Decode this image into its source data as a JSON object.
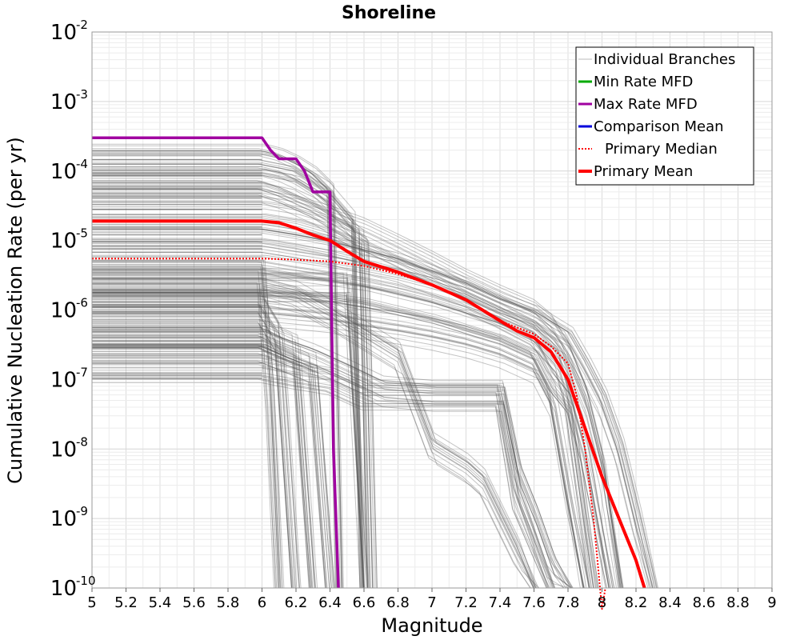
{
  "chart_data": {
    "type": "line",
    "title": "Shoreline",
    "xlabel": "Magnitude",
    "ylabel": "Cumulative Nucleation Rate (per yr)",
    "xlim": [
      5,
      9
    ],
    "ylim": [
      1e-10,
      0.01
    ],
    "yscale": "log",
    "grid": true,
    "legend_position": "top-right",
    "x_ticks": [
      "5",
      "5.2",
      "5.4",
      "5.6",
      "5.8",
      "6",
      "6.2",
      "6.4",
      "6.6",
      "6.8",
      "7",
      "7.2",
      "7.4",
      "7.6",
      "7.8",
      "8",
      "8.2",
      "8.4",
      "8.6",
      "8.8",
      "9"
    ],
    "y_ticks": [
      {
        "base": "10",
        "exp": "-10"
      },
      {
        "base": "10",
        "exp": "-9"
      },
      {
        "base": "10",
        "exp": "-8"
      },
      {
        "base": "10",
        "exp": "-7"
      },
      {
        "base": "10",
        "exp": "-6"
      },
      {
        "base": "10",
        "exp": "-5"
      },
      {
        "base": "10",
        "exp": "-4"
      },
      {
        "base": "10",
        "exp": "-3"
      },
      {
        "base": "10",
        "exp": "-2"
      }
    ],
    "series": [
      {
        "name": "Individual Branches",
        "color": "#555555",
        "style": "thin",
        "description": "hundreds of logic-tree branch MFDs; a representative subset is drawn",
        "bundles": [
          {
            "x": [
              5,
              6.0,
              6.1,
              6.2,
              6.3,
              6.4,
              6.45
            ],
            "y": [
              0.00015,
              0.00015,
              0.00013,
              0.0001,
              7e-05,
              4e-05,
              1e-10
            ]
          },
          {
            "x": [
              5,
              6.0,
              6.2,
              6.4,
              6.55,
              6.6
            ],
            "y": [
              0.0001,
              0.0001,
              8e-05,
              4e-05,
              1.5e-05,
              1e-10
            ]
          },
          {
            "x": [
              5,
              6.0,
              6.1,
              6.3,
              6.5,
              6.6,
              6.65
            ],
            "y": [
              6e-05,
              6e-05,
              5e-05,
              3e-05,
              1.5e-05,
              1e-05,
              1e-10
            ]
          },
          {
            "x": [
              5,
              6.0,
              6.2,
              6.4,
              6.6,
              6.8,
              7.0,
              7.2,
              7.4,
              7.6,
              7.7,
              7.8,
              7.9,
              8.0,
              8.1
            ],
            "y": [
              3e-05,
              3e-05,
              2.5e-05,
              1.8e-05,
              1.2e-05,
              7e-06,
              4e-06,
              2.2e-06,
              1.3e-06,
              8e-07,
              5e-07,
              2e-07,
              5e-08,
              5e-09,
              1e-10
            ]
          },
          {
            "x": [
              5,
              6.0,
              6.2,
              6.4,
              6.6,
              6.8,
              7.0,
              7.2,
              7.4,
              7.6,
              7.8,
              7.9,
              8.0,
              8.1,
              8.2,
              8.3
            ],
            "y": [
              1.2e-05,
              1.2e-05,
              1e-05,
              8e-06,
              6e-06,
              4.5e-06,
              3e-06,
              2e-06,
              1.2e-06,
              8e-07,
              4e-07,
              1.5e-07,
              5e-08,
              1e-08,
              1e-09,
              1e-10
            ]
          },
          {
            "x": [
              5,
              6.0,
              6.2,
              6.4,
              6.6,
              6.8,
              7.0,
              7.2,
              7.4,
              7.6,
              7.75,
              7.9,
              8.05
            ],
            "y": [
              6e-06,
              6e-06,
              5e-06,
              4.2e-06,
              3.5e-06,
              2.8e-06,
              2.1e-06,
              1.5e-06,
              9e-07,
              5e-07,
              2e-07,
              1e-08,
              1e-10
            ]
          },
          {
            "x": [
              5,
              6.0,
              6.2,
              6.4,
              6.6,
              6.8,
              7.0,
              7.2,
              7.4,
              7.6,
              7.7,
              7.8,
              7.95
            ],
            "y": [
              2.5e-06,
              2.5e-06,
              2.3e-06,
              2e-06,
              1.7e-06,
              1.3e-06,
              1e-06,
              7e-07,
              5e-07,
              3e-07,
              1e-07,
              5e-08,
              1e-10
            ]
          },
          {
            "x": [
              5,
              6.0,
              6.2,
              6.4,
              6.6,
              6.8,
              7.0,
              7.2,
              7.4,
              7.6,
              7.7,
              7.8,
              7.9
            ],
            "y": [
              1e-06,
              1e-06,
              9e-07,
              8e-07,
              6.5e-07,
              5.5e-07,
              4.5e-07,
              3.5e-07,
              2.5e-07,
              1.5e-07,
              5e-08,
              2e-09,
              1e-10
            ]
          },
          {
            "x": [
              5,
              6.0,
              6.1,
              6.3,
              6.5,
              6.7,
              7.0,
              7.2,
              7.4,
              7.5,
              7.6,
              7.7,
              7.8
            ],
            "y": [
              4e-07,
              4e-07,
              3e-07,
              2e-07,
              1.2e-07,
              7e-08,
              6e-08,
              6e-08,
              6e-08,
              4e-09,
              1e-09,
              2e-10,
              1e-10
            ]
          },
          {
            "x": [
              5,
              6.0,
              6.2,
              6.4,
              6.6,
              6.8,
              7.0,
              7.2,
              7.4,
              7.5,
              7.7
            ],
            "y": [
              1.5e-07,
              1.5e-07,
              1.2e-07,
              1e-07,
              6e-08,
              6e-08,
              6e-08,
              6e-08,
              6e-08,
              2e-09,
              1e-10
            ]
          },
          {
            "x": [
              5,
              6.0,
              6.2,
              6.4,
              6.6,
              6.8,
              7.0,
              7.2,
              7.3,
              7.5,
              7.6
            ],
            "y": [
              2e-06,
              2e-06,
              1.5e-06,
              8e-07,
              4e-07,
              2e-07,
              1e-08,
              5e-09,
              3e-09,
              3e-10,
              1e-10
            ]
          },
          {
            "x": [
              5,
              6.0,
              6.05,
              6.1
            ],
            "y": [
              3e-06,
              3e-06,
              5e-08,
              1e-10
            ]
          },
          {
            "x": [
              5,
              6.0,
              6.1,
              6.2
            ],
            "y": [
              1e-06,
              1e-06,
              4e-07,
              1e-10
            ]
          },
          {
            "x": [
              5,
              6.0,
              6.2,
              6.3
            ],
            "y": [
              5e-07,
              5e-07,
              3e-07,
              1e-10
            ]
          },
          {
            "x": [
              5,
              6.0,
              6.3,
              6.4
            ],
            "y": [
              3e-07,
              3e-07,
              1.5e-07,
              1e-10
            ]
          },
          {
            "x": [
              5,
              6.0,
              6.5,
              6.6
            ],
            "y": [
              2e-06,
              2e-06,
              2e-06,
              1e-10
            ]
          }
        ]
      },
      {
        "name": "Min Rate MFD",
        "color": "#00aa00",
        "x": [],
        "y": []
      },
      {
        "name": "Max Rate MFD",
        "color": "#a000a0",
        "x": [
          5,
          6.0,
          6.05,
          6.1,
          6.15,
          6.2,
          6.25,
          6.3,
          6.35,
          6.4,
          6.42,
          6.45
        ],
        "y": [
          0.0003,
          0.0003,
          0.0002,
          0.00015,
          0.00015,
          0.00015,
          0.0001,
          5e-05,
          5e-05,
          5e-05,
          1e-08,
          1e-10
        ]
      },
      {
        "name": "Comparison Mean",
        "color": "#0000dd",
        "x": [],
        "y": []
      },
      {
        "name": "Primary Median",
        "color": "#ff0000",
        "style": "dotted",
        "x": [
          5,
          6.0,
          6.2,
          6.4,
          6.6,
          6.8,
          7.0,
          7.2,
          7.4,
          7.6,
          7.7,
          7.8,
          7.85,
          7.9,
          7.95,
          8.0,
          8.02
        ],
        "y": [
          5.5e-06,
          5.5e-06,
          5.3e-06,
          5e-06,
          4.3e-06,
          3.3e-06,
          2.3e-06,
          1.4e-06,
          7e-07,
          4.5e-07,
          3e-07,
          1.7e-07,
          6e-08,
          1e-08,
          1e-09,
          3e-11,
          1e-10
        ]
      },
      {
        "name": "Primary Mean",
        "color": "#ff0000",
        "style": "thick",
        "x": [
          5,
          6.0,
          6.1,
          6.2,
          6.3,
          6.4,
          6.5,
          6.6,
          6.8,
          7.0,
          7.2,
          7.4,
          7.5,
          7.6,
          7.7,
          7.8,
          7.9,
          8.0,
          8.1,
          8.2,
          8.25
        ],
        "y": [
          1.9e-05,
          1.9e-05,
          1.8e-05,
          1.5e-05,
          1.2e-05,
          1e-05,
          7e-06,
          5e-06,
          3.5e-06,
          2.3e-06,
          1.4e-06,
          7e-07,
          5e-07,
          4e-07,
          2.5e-07,
          1e-07,
          2e-08,
          4e-09,
          1e-09,
          2.5e-10,
          1e-10
        ]
      }
    ]
  }
}
